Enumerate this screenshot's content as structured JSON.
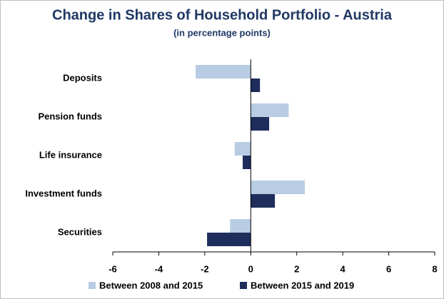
{
  "chart_data": {
    "type": "hbar",
    "title": "Change in Shares of Household Portfolio - Austria",
    "subtitle": "(in percentage points)",
    "categories": [
      "Deposits",
      "Pension funds",
      "Life insurance",
      "Investment funds",
      "Securities"
    ],
    "series": [
      {
        "name": "Between 2008 and 2015",
        "color": "#b8cce4",
        "values": [
          -2.4,
          1.65,
          -0.7,
          2.35,
          -0.9
        ]
      },
      {
        "name": "Between 2015 and 2019",
        "color": "#1f2d5c",
        "values": [
          0.4,
          0.8,
          -0.35,
          1.05,
          -1.9
        ]
      }
    ],
    "xlim": [
      -6,
      8
    ],
    "xticks": [
      -6,
      -4,
      -2,
      0,
      2,
      4,
      6,
      8
    ],
    "grid": false,
    "legend": "bottom"
  }
}
